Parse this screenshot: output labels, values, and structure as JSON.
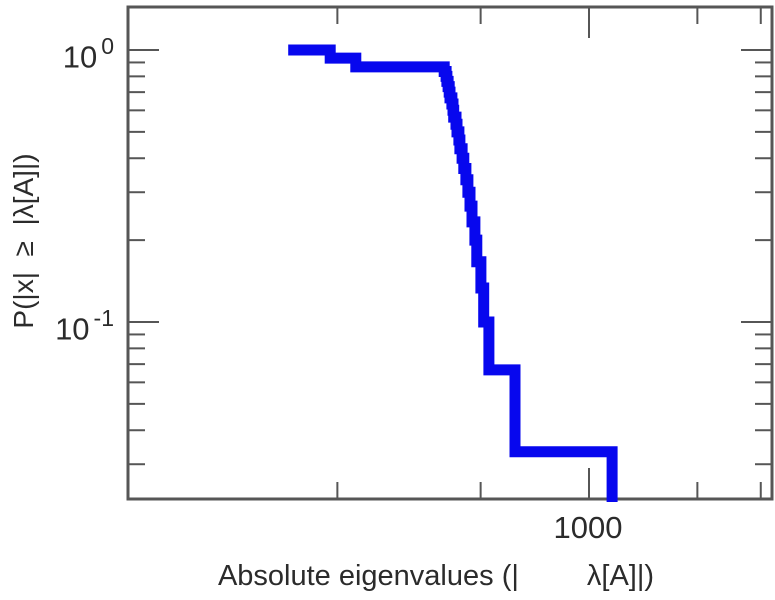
{
  "chart_data": {
    "type": "line",
    "subtype": "step-ccdf-staircase",
    "title": "",
    "xlabel_left": "Absolute eigenvalues (|",
    "xlabel_right": "λ[A]|)",
    "ylabel": "P(|x|  ≥  |λ[A]|)",
    "x_scale": "log",
    "y_scale": "log",
    "xlim": [
      52,
      3240
    ],
    "ylim": [
      0.0224,
      1.43
    ],
    "grid": false,
    "legend": "none",
    "x_ticks_major": [
      {
        "value": 1000,
        "label": "1000"
      }
    ],
    "x_ticks_minor": [
      200,
      500,
      2000,
      3000
    ],
    "y_ticks_major": [
      {
        "value": 1,
        "base": "10",
        "exponent": "0"
      },
      {
        "value": 0.1,
        "base": "10",
        "exponent": "-1"
      }
    ],
    "y_ticks_minor": [
      0.9,
      0.8,
      0.7,
      0.6,
      0.5,
      0.4,
      0.3,
      0.2,
      0.09,
      0.08,
      0.07,
      0.06,
      0.05,
      0.04,
      0.03
    ],
    "series": [
      {
        "name": "eigenvalue-ccdf",
        "color": "#0707ee",
        "n": 30,
        "x_start": 146,
        "eigenvalues_ascending": [
          191,
          191,
          225,
          225,
          396,
          401,
          403,
          406,
          409,
          411,
          416,
          419,
          421,
          427,
          430,
          435,
          438,
          444,
          449,
          455,
          461,
          467,
          473,
          482,
          488,
          501,
          510,
          527,
          623,
          1159
        ],
        "probability_step": "k/30"
      }
    ],
    "colors": {
      "curve": "#0707ee",
      "axis": "#565656",
      "text": "#2b2b2b",
      "background": "#ffffff"
    }
  }
}
